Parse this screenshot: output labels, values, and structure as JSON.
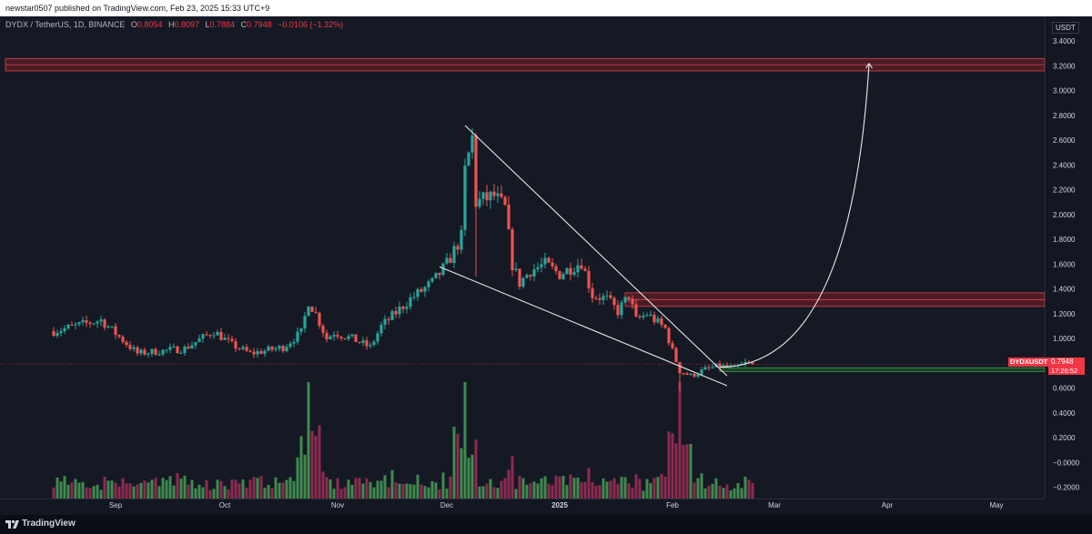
{
  "header": {
    "publish_text": "newstar0507 published on TradingView.com, Feb 23, 2025 15:33 UTC+9"
  },
  "symbol": {
    "name": "DYDX / TetherUS, 1D, BINANCE",
    "open_label": "O",
    "open": "0.8054",
    "high_label": "H",
    "high": "0.8097",
    "low_label": "L",
    "low": "0.7884",
    "close_label": "C",
    "close": "0.7948",
    "change": "−0.0106 (−1.32%)"
  },
  "axis": {
    "currency": "USDT"
  },
  "price_label": {
    "ticker": "DYDXUSDT",
    "price": "0.7948",
    "countdown": "17:26:52"
  },
  "footer": {
    "brand": "TradingView"
  },
  "colors": {
    "background": "#151924",
    "up": "#26a69a",
    "down": "#ef5350",
    "volume_up": "#3f8a4f",
    "volume_down": "#8e2a4f",
    "resistance_zone": "#7a1f26",
    "support_zone": "#1f5a2a",
    "trend_line": "#e8e8e8"
  },
  "chart_data": {
    "type": "candlestick",
    "title": "",
    "ylabel": "USDT",
    "price_axis_ticks": [
      "3.4000",
      "3.2000",
      "3.0000",
      "2.8000",
      "2.6000",
      "2.4000",
      "2.2000",
      "2.0000",
      "1.8000",
      "1.6000",
      "1.4000",
      "1.2000",
      "1.0000",
      "0.6000",
      "0.4000",
      "0.2000",
      "−0.0000",
      "−0.2000"
    ],
    "time_axis_ticks": [
      "Sep",
      "Oct",
      "Nov",
      "Dec",
      "2025",
      "Feb",
      "Mar",
      "Apr",
      "May"
    ],
    "time_axis_bold": [
      "2025"
    ],
    "ylim": [
      -0.29,
      3.6
    ],
    "price_anchors": [
      {
        "date": "2024-08-15",
        "close": 1.06
      },
      {
        "date": "2024-08-28",
        "close": 1.15
      },
      {
        "date": "2024-09-04",
        "close": 0.96
      },
      {
        "date": "2024-09-07",
        "close": 0.88
      },
      {
        "date": "2024-09-20",
        "close": 0.92
      },
      {
        "date": "2024-09-28",
        "close": 1.06
      },
      {
        "date": "2024-10-03",
        "close": 0.95
      },
      {
        "date": "2024-10-08",
        "close": 0.88
      },
      {
        "date": "2024-10-17",
        "close": 0.93
      },
      {
        "date": "2024-10-22",
        "close": 1.05
      },
      {
        "date": "2024-10-24",
        "close": 1.3
      },
      {
        "date": "2024-10-26",
        "close": 1.2
      },
      {
        "date": "2024-10-29",
        "close": 1.0
      },
      {
        "date": "2024-10-31",
        "close": 1.05
      },
      {
        "date": "2024-11-05",
        "close": 1.0
      },
      {
        "date": "2024-11-10",
        "close": 0.93
      },
      {
        "date": "2024-11-13",
        "close": 1.1
      },
      {
        "date": "2024-11-21",
        "close": 1.32
      },
      {
        "date": "2024-11-27",
        "close": 1.45
      },
      {
        "date": "2024-12-01",
        "close": 1.6
      },
      {
        "date": "2024-12-05",
        "close": 1.82
      },
      {
        "date": "2024-12-06",
        "close": 2.35
      },
      {
        "date": "2024-12-08",
        "close": 2.62
      },
      {
        "date": "2024-12-09",
        "close": 2.1
      },
      {
        "date": "2024-12-14",
        "close": 2.15
      },
      {
        "date": "2024-12-17",
        "close": 2.05
      },
      {
        "date": "2024-12-19",
        "close": 1.6
      },
      {
        "date": "2024-12-21",
        "close": 1.45
      },
      {
        "date": "2024-12-24",
        "close": 1.55
      },
      {
        "date": "2024-12-28",
        "close": 1.6
      },
      {
        "date": "2025-01-01",
        "close": 1.52
      },
      {
        "date": "2025-01-07",
        "close": 1.62
      },
      {
        "date": "2025-01-10",
        "close": 1.35
      },
      {
        "date": "2025-01-14",
        "close": 1.32
      },
      {
        "date": "2025-01-17",
        "close": 1.22
      },
      {
        "date": "2025-01-20",
        "close": 1.35
      },
      {
        "date": "2025-01-22",
        "close": 1.15
      },
      {
        "date": "2025-01-25",
        "close": 1.2
      },
      {
        "date": "2025-01-30",
        "close": 1.08
      },
      {
        "date": "2025-02-01",
        "close": 0.9
      },
      {
        "date": "2025-02-03",
        "close": 0.74
      },
      {
        "date": "2025-02-06",
        "close": 0.7
      },
      {
        "date": "2025-02-10",
        "close": 0.75
      },
      {
        "date": "2025-02-14",
        "close": 0.78
      },
      {
        "date": "2025-02-18",
        "close": 0.76
      },
      {
        "date": "2025-02-21",
        "close": 0.8
      },
      {
        "date": "2025-02-23",
        "close": 0.7948
      }
    ],
    "extreme_wicks": [
      {
        "date": "2024-12-08",
        "high": 2.7
      },
      {
        "date": "2024-12-09",
        "low": 1.5
      },
      {
        "date": "2025-02-03",
        "low": 0.58
      }
    ],
    "last_candle": {
      "date": "2025-02-23",
      "open": 0.8054,
      "high": 0.8097,
      "low": 0.7884,
      "close": 0.7948
    },
    "volume_peaks": [
      {
        "date": "2024-10-24",
        "direction": "up"
      },
      {
        "date": "2024-12-06",
        "direction": "up"
      },
      {
        "date": "2025-02-03",
        "direction": "down"
      }
    ],
    "annotations": {
      "resistance_zone_upper": [
        3.16,
        3.26
      ],
      "resistance_zone_mid": [
        1.26,
        1.37
      ],
      "support_zone": [
        0.735,
        0.765
      ],
      "wedge_upper_line": [
        {
          "date": "2024-12-06",
          "price": 2.72
        },
        {
          "date": "2025-02-16",
          "price": 0.7
        }
      ],
      "wedge_lower_line": [
        {
          "date": "2024-11-29",
          "price": 1.58
        },
        {
          "date": "2025-02-16",
          "price": 0.62
        }
      ],
      "projection_curve": [
        {
          "date": "2025-02-14",
          "price": 0.77
        },
        {
          "date": "2025-03-27",
          "price": 3.22
        }
      ],
      "current_price_line": 0.7948
    },
    "grid": false
  }
}
